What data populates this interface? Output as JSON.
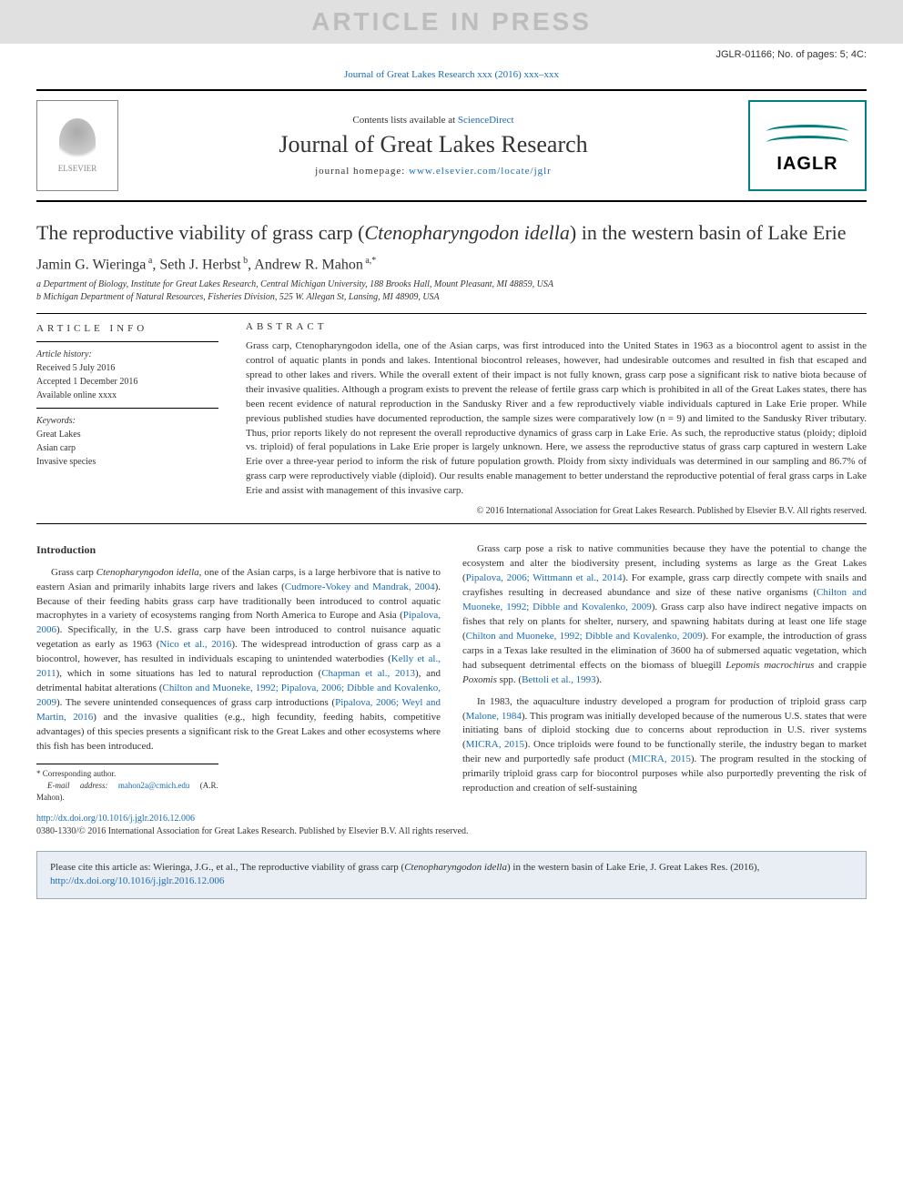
{
  "banner": "ARTICLE IN PRESS",
  "top_ref": "JGLR-01166; No. of pages: 5; 4C:",
  "journal_ref_line": "Journal of Great Lakes Research xxx (2016) xxx–xxx",
  "header": {
    "contents_prefix": "Contents lists available at ",
    "contents_link": "ScienceDirect",
    "journal_title": "Journal of Great Lakes Research",
    "homepage_prefix": "journal homepage: ",
    "homepage_url": "www.elsevier.com/locate/jglr",
    "elsevier_label": "ELSEVIER",
    "iaglr_label": "IAGLR"
  },
  "title_pre": "The reproductive viability of grass carp (",
  "title_em": "Ctenopharyngodon idella",
  "title_post": ") in the western basin of Lake Erie",
  "authors": {
    "a1_name": "Jamin G. Wieringa",
    "a1_sup": "a",
    "a2_name": "Seth J. Herbst",
    "a2_sup": "b",
    "a3_name": "Andrew R. Mahon",
    "a3_sup": "a,*"
  },
  "affiliations": {
    "a": "a Department of Biology, Institute for Great Lakes Research, Central Michigan University, 188 Brooks Hall, Mount Pleasant, MI 48859, USA",
    "b": "b Michigan Department of Natural Resources, Fisheries Division, 525 W. Allegan St, Lansing, MI 48909, USA"
  },
  "article_info": {
    "heading": "ARTICLE INFO",
    "history_label": "Article history:",
    "received": "Received 5 July 2016",
    "accepted": "Accepted 1 December 2016",
    "online": "Available online xxxx",
    "keywords_label": "Keywords:",
    "k1": "Great Lakes",
    "k2": "Asian carp",
    "k3": "Invasive species"
  },
  "abstract": {
    "heading": "ABSTRACT",
    "text": "Grass carp, Ctenopharyngodon idella, one of the Asian carps, was first introduced into the United States in 1963 as a biocontrol agent to assist in the control of aquatic plants in ponds and lakes. Intentional biocontrol releases, however, had undesirable outcomes and resulted in fish that escaped and spread to other lakes and rivers. While the overall extent of their impact is not fully known, grass carp pose a significant risk to native biota because of their invasive qualities. Although a program exists to prevent the release of fertile grass carp which is prohibited in all of the Great Lakes states, there has been recent evidence of natural reproduction in the Sandusky River and a few reproductively viable individuals captured in Lake Erie proper. While previous published studies have documented reproduction, the sample sizes were comparatively low (n = 9) and limited to the Sandusky River tributary. Thus, prior reports likely do not represent the overall reproductive dynamics of grass carp in Lake Erie. As such, the reproductive status (ploidy; diploid vs. triploid) of feral populations in Lake Erie proper is largely unknown. Here, we assess the reproductive status of grass carp captured in western Lake Erie over a three-year period to inform the risk of future population growth. Ploidy from sixty individuals was determined in our sampling and 86.7% of grass carp were reproductively viable (diploid). Our results enable management to better understand the reproductive potential of feral grass carps in Lake Erie and assist with management of this invasive carp.",
    "copyright": "© 2016 International Association for Great Lakes Research. Published by Elsevier B.V. All rights reserved."
  },
  "body": {
    "intro_heading": "Introduction",
    "p1_a": "Grass carp ",
    "p1_em1": "Ctenopharyngodon idella",
    "p1_b": ", one of the Asian carps, is a large herbivore that is native to eastern Asian and primarily inhabits large rivers and lakes (",
    "p1_l1": "Cudmore-Vokey and Mandrak, 2004",
    "p1_c": "). Because of their feeding habits grass carp have traditionally been introduced to control aquatic macrophytes in a variety of ecosystems ranging from North America to Europe and Asia (",
    "p1_l2": "Pipalova, 2006",
    "p1_d": "). Specifically, in the U.S. grass carp have been introduced to control nuisance aquatic vegetation as early as 1963 (",
    "p1_l3": "Nico et al., 2016",
    "p1_e": "). The widespread introduction of grass carp as a biocontrol, however, has resulted in individuals escaping to unintended waterbodies (",
    "p1_l4": "Kelly et al., 2011",
    "p1_f": "), which in some situations has led to natural reproduction (",
    "p1_l5": "Chapman et al., 2013",
    "p1_g": "), and detrimental habitat alterations (",
    "p1_l6": "Chilton and Muoneke, 1992; Pipalova, 2006; Dibble and Kovalenko, 2009",
    "p1_h": "). The severe unintended consequences of grass carp introductions (",
    "p1_l7": "Pipalova, 2006; Weyl and Martin, 2016",
    "p1_i": ") and the invasive qualities (e.g., high fecundity, feeding habits, competitive advantages) of this species presents a significant risk to the Great Lakes and other ecosystems where this fish has been introduced.",
    "p2_a": "Grass carp pose a risk to native communities because they have the potential to change the ecosystem and alter the biodiversity present, including systems as large as the Great Lakes (",
    "p2_l1": "Pipalova, 2006; Wittmann et al., 2014",
    "p2_b": "). For example, grass carp directly compete with snails and crayfishes resulting in decreased abundance and size of these native organisms (",
    "p2_l2": "Chilton and Muoneke, 1992; Dibble and Kovalenko, 2009",
    "p2_c": "). Grass carp also have indirect negative impacts on fishes that rely on plants for shelter, nursery, and spawning habitats during at least one life stage (",
    "p2_l3": "Chilton and Muoneke, 1992; Dibble and Kovalenko, 2009",
    "p2_d": "). For example, the introduction of grass carps in a Texas lake resulted in the elimination of 3600 ha of submersed aquatic vegetation, which had subsequent detrimental effects on the biomass of bluegill ",
    "p2_em1": "Lepomis macrochirus",
    "p2_e": " and crappie ",
    "p2_em2": "Poxomis",
    "p2_f": " spp. (",
    "p2_l4": "Bettoli et al., 1993",
    "p2_g": ").",
    "p3_a": "In 1983, the aquaculture industry developed a program for production of triploid grass carp (",
    "p3_l1": "Malone, 1984",
    "p3_b": "). This program was initially developed because of the numerous U.S. states that were initiating bans of diploid stocking due to concerns about reproduction in U.S. river systems (",
    "p3_l2": "MICRA, 2015",
    "p3_c": "). Once triploids were found to be functionally sterile, the industry began to market their new and purportedly safe product (",
    "p3_l3": "MICRA, 2015",
    "p3_d": "). The program resulted in the stocking of primarily triploid grass carp for biocontrol purposes while also purportedly preventing the risk of reproduction and creation of self-sustaining"
  },
  "corresponding": {
    "star": "* Corresponding author.",
    "email_label": "E-mail address: ",
    "email": "mahon2a@cmich.edu",
    "name": " (A.R. Mahon)."
  },
  "footer": {
    "doi": "http://dx.doi.org/10.1016/j.jglr.2016.12.006",
    "issn": "0380-1330/© 2016 International Association for Great Lakes Research. Published by Elsevier B.V. All rights reserved."
  },
  "citation": {
    "text_a": "Please cite this article as: Wieringa, J.G., et al., The reproductive viability of grass carp (",
    "text_em": "Ctenopharyngodon idella",
    "text_b": ") in the western basin of Lake Erie, J. Great Lakes Res. (2016), ",
    "url": "http://dx.doi.org/10.1016/j.jglr.2016.12.006"
  },
  "colors": {
    "link": "#1a6bb5",
    "banner_bg": "#e0e0e0",
    "banner_fg": "#bdbdbd",
    "citation_bg": "#e8eef3",
    "iaglr": "#008080"
  }
}
